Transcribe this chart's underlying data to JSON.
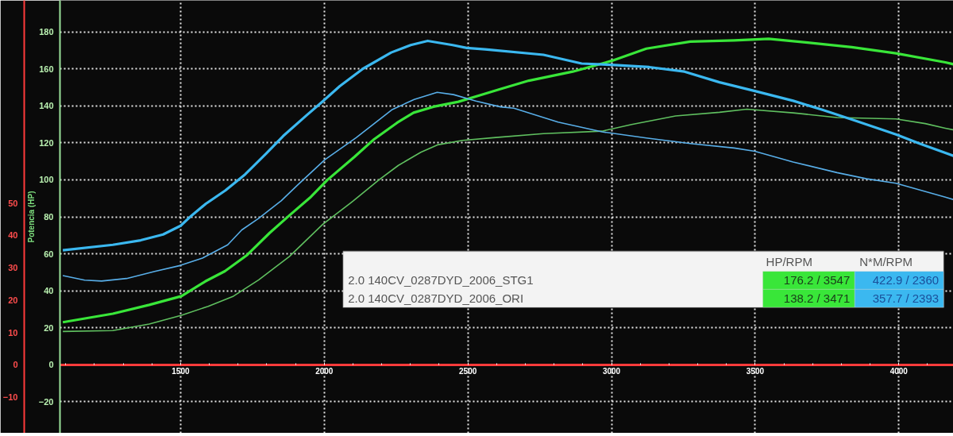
{
  "chart_data": {
    "type": "line",
    "ylabel": "Potencia (HP)",
    "xlim": [
      1080,
      4190
    ],
    "xticks": [
      1500,
      2000,
      2500,
      3000,
      3500,
      4000
    ],
    "ylim": [
      -37,
      197
    ],
    "yticks": [
      -20,
      0,
      20,
      40,
      60,
      80,
      100,
      120,
      140,
      160,
      180
    ],
    "y2lim": [
      -21.1,
      112.6
    ],
    "y2ticks": [
      -10,
      0,
      10,
      20,
      30,
      40,
      50
    ],
    "grid": true,
    "annotations": [
      "HP/RPM",
      "N*M/RPM",
      "2.0 140CV_0287DYD_2006_STG1",
      "176.2 / 3547",
      "422.9 / 2360",
      "2.0 140CV_0287DYD_2006_ORI",
      "138.2 / 3471",
      "357.7 / 2393"
    ],
    "series": [
      {
        "color": "#39e639",
        "x": [
          1090,
          1264,
          1391,
          1503,
          1586,
          1654,
          1732,
          1810,
          1879,
          1950,
          2010,
          2106,
          2174,
          2253,
          2311,
          2380,
          2467,
          2546,
          2612,
          2712,
          2865,
          3000,
          3121,
          3274,
          3427,
          3547,
          3683,
          3836,
          3990,
          4162,
          4190
        ],
        "values": [
          23,
          27.6,
          32.4,
          37.1,
          45.1,
          50.6,
          59.4,
          71.3,
          80.8,
          90.3,
          99.8,
          112.5,
          122,
          130.8,
          136.3,
          139.5,
          142.2,
          145.9,
          149,
          153.6,
          158.5,
          164.3,
          170.9,
          174.7,
          175.4,
          176.2,
          174.2,
          171.7,
          168.4,
          163.5,
          162.5
        ]
      },
      {
        "color": "#5fbf5f",
        "x": [
          1090,
          1264,
          1391,
          1503,
          1596,
          1684,
          1772,
          1879,
          1995,
          2102,
          2189,
          2258,
          2336,
          2394,
          2482,
          2597,
          2763,
          2967,
          3070,
          3223,
          3376,
          3471,
          3632,
          3785,
          3990,
          4092,
          4162,
          4190
        ],
        "values": [
          18,
          18.5,
          22,
          26.8,
          31.6,
          37.1,
          45.9,
          58.6,
          76,
          88.7,
          99.8,
          107.8,
          114.9,
          118.9,
          121.3,
          122.9,
          125,
          126.3,
          129.9,
          134.5,
          136.5,
          138.2,
          136.2,
          133.7,
          132.9,
          130.4,
          127.9,
          127
        ]
      },
      {
        "color": "#3bb8f0",
        "axis": "y2",
        "x": [
          1090,
          1264,
          1361,
          1439,
          1500,
          1539,
          1588,
          1656,
          1725,
          1797,
          1857,
          1937,
          1996,
          2054,
          2135,
          2233,
          2301,
          2360,
          2447,
          2496,
          2560,
          2763,
          2896,
          2998,
          3131,
          3254,
          3376,
          3499,
          3632,
          3734,
          3847,
          3990,
          4072,
          4162,
          4190
        ],
        "values": [
          35.4,
          37.1,
          38.5,
          40.3,
          43.0,
          46.2,
          49.8,
          53.9,
          58.9,
          65.2,
          70.7,
          77.0,
          81.5,
          86.1,
          91.5,
          96.5,
          98.8,
          100.1,
          98.8,
          97.9,
          97.5,
          95.8,
          93.1,
          92.7,
          92.0,
          90.6,
          87.3,
          84.6,
          81.6,
          78.8,
          75.5,
          71.2,
          68.4,
          65.5,
          64.6
        ]
      },
      {
        "color": "#58aee8",
        "axis": "y2",
        "x": [
          1090,
          1166,
          1225,
          1312,
          1410,
          1498,
          1576,
          1664,
          1713,
          1772,
          1850,
          1909,
          2002,
          2111,
          2235,
          2313,
          2393,
          2450,
          2528,
          2614,
          2660,
          2814,
          2967,
          3121,
          3274,
          3427,
          3499,
          3632,
          3785,
          3888,
          3990,
          4162,
          4190
        ],
        "values": [
          27.6,
          26.2,
          25.9,
          26.7,
          28.9,
          30.7,
          33.0,
          37.1,
          41.7,
          45.3,
          50.7,
          55.7,
          63.4,
          70.2,
          78.8,
          82.0,
          84.2,
          83.5,
          81.5,
          79.7,
          79.3,
          75.0,
          72.0,
          70.1,
          68.4,
          67.0,
          66.0,
          62.7,
          59.4,
          57.5,
          56.1,
          51.8,
          51.1
        ]
      }
    ]
  }
}
